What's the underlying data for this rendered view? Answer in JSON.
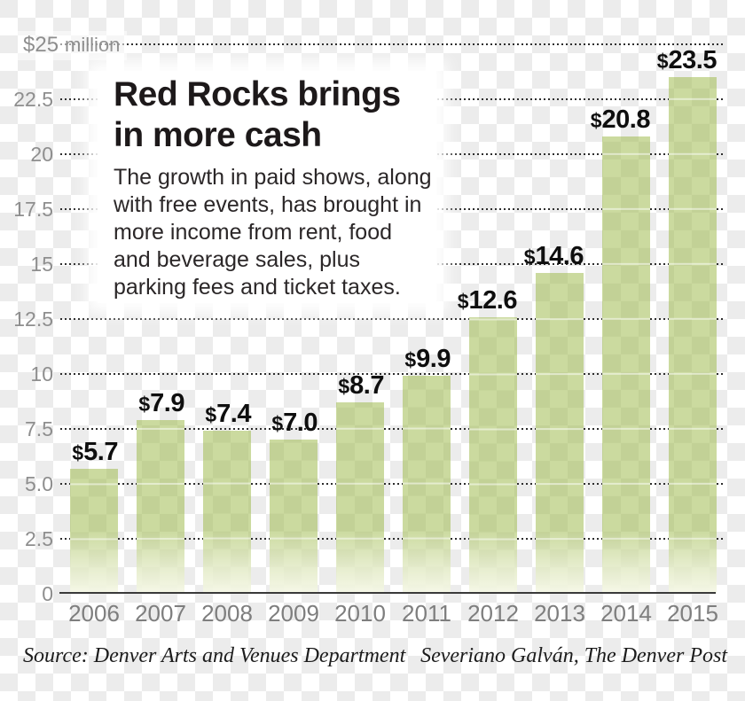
{
  "chart_data": {
    "type": "bar",
    "title": "Red Rocks brings\nin more cash",
    "subtitle": "The growth in paid shows, along\nwith free events, has brought in\nmore income from rent, food\nand beverage sales, plus\nparking fees and ticket taxes.",
    "y_axis": {
      "unit_value": "$25",
      "unit_name": "million",
      "top_value": 25,
      "ylim": [
        0,
        25
      ],
      "ticks": [
        {
          "label": "22.5",
          "value": 22.5
        },
        {
          "label": "20",
          "value": 20
        },
        {
          "label": "17.5",
          "value": 17.5
        },
        {
          "label": "15",
          "value": 15
        },
        {
          "label": "12.5",
          "value": 12.5
        },
        {
          "label": "10",
          "value": 10
        },
        {
          "label": "7.5",
          "value": 7.5
        },
        {
          "label": "5.0",
          "value": 5
        },
        {
          "label": "2.5",
          "value": 2.5
        },
        {
          "label": "0",
          "value": 0
        }
      ]
    },
    "categories": [
      "2006",
      "2007",
      "2008",
      "2009",
      "2010",
      "2011",
      "2012",
      "2013",
      "2014",
      "2015"
    ],
    "values": [
      5.7,
      7.9,
      7.4,
      7.0,
      8.7,
      9.9,
      12.6,
      14.6,
      20.8,
      23.5
    ],
    "currency_prefix": "$",
    "grid": true,
    "legend": false,
    "source": "Source: Denver Arts and Venues Department",
    "credit": "Severiano Galván, The Denver Post",
    "colors": {
      "bar_on_white": "#cbda9f",
      "bar_on_gray": "#c2d196",
      "checker_white": "#ffffff",
      "checker_gray": "#ececec",
      "gridline": "#2e2e2e",
      "axis_line": "#3a3a3a",
      "tick_text": "#8e8e8e",
      "year_text": "#7e7e7e",
      "value_text": "#0f0f0f",
      "title_text": "#1d191a",
      "body_text": "#2b2728",
      "credit_text": "#1c1c1c"
    }
  }
}
